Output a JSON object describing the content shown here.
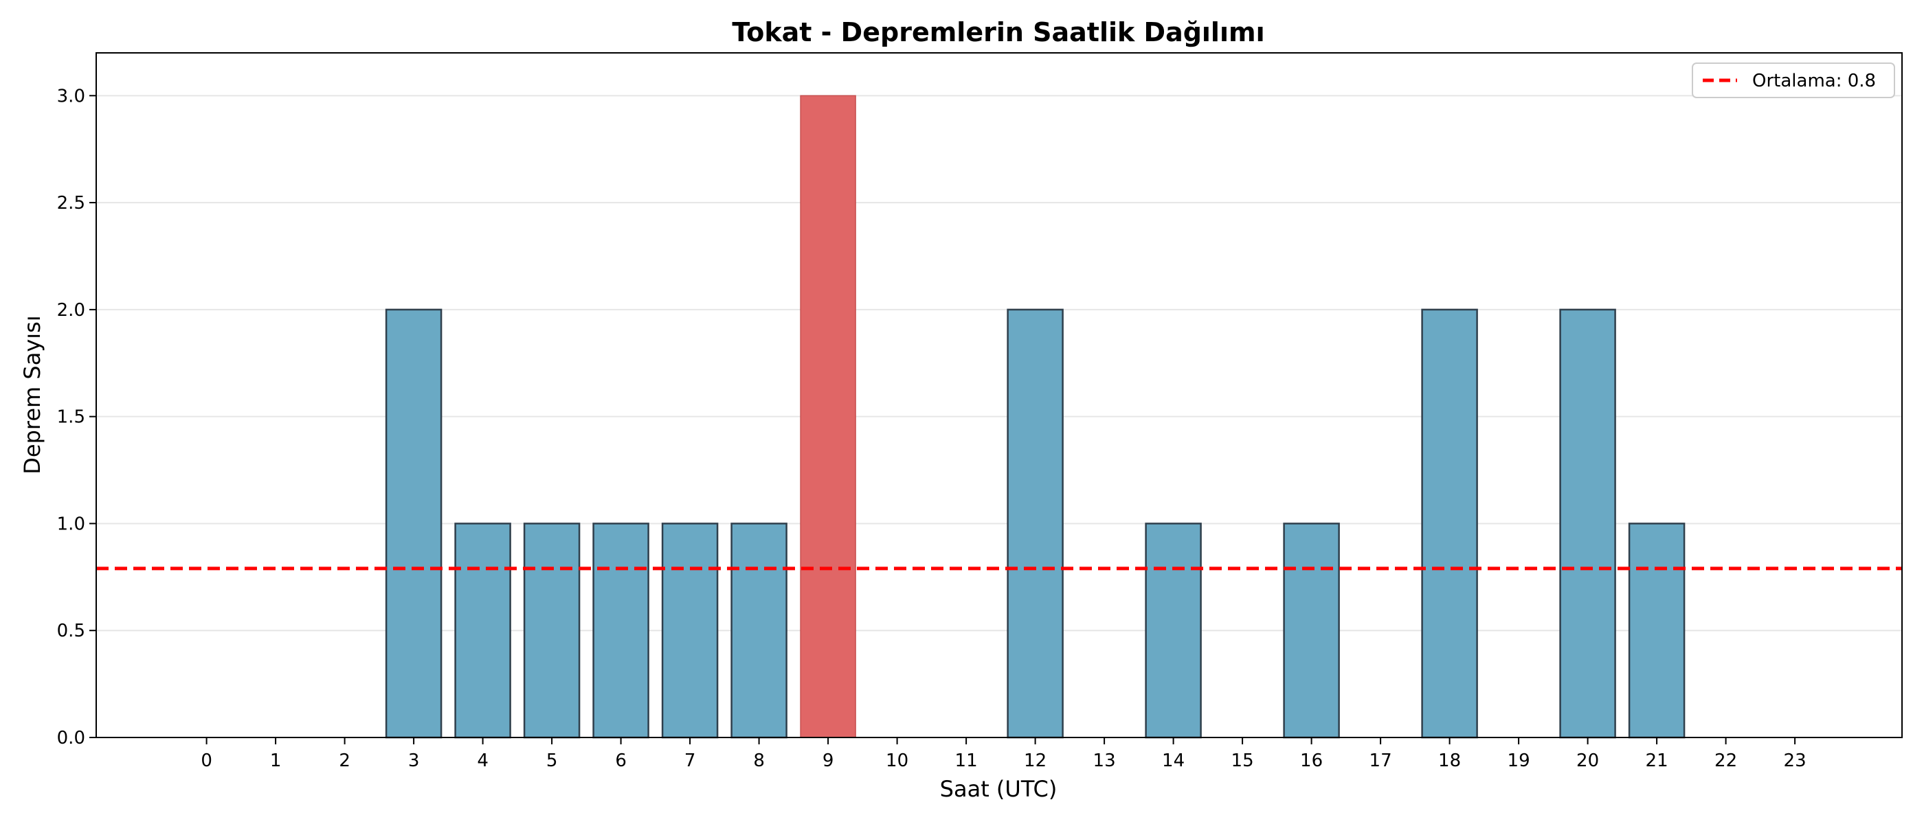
{
  "chart_data": {
    "type": "bar",
    "title": "Tokat - Depremlerin Saatlik Dağılımı",
    "xlabel": "Saat (UTC)",
    "ylabel": "Deprem Sayısı",
    "categories": [
      "0",
      "1",
      "2",
      "3",
      "4",
      "5",
      "6",
      "7",
      "8",
      "9",
      "10",
      "11",
      "12",
      "13",
      "14",
      "15",
      "16",
      "17",
      "18",
      "19",
      "20",
      "21",
      "22",
      "23"
    ],
    "values": [
      0,
      0,
      0,
      2,
      1,
      1,
      1,
      1,
      1,
      3,
      0,
      0,
      2,
      0,
      1,
      0,
      1,
      0,
      2,
      0,
      2,
      1,
      0,
      0
    ],
    "ylim": [
      0,
      3.2
    ],
    "yticks": [
      0.0,
      0.5,
      1.0,
      1.5,
      2.0,
      2.5,
      3.0
    ],
    "ytick_labels": [
      "0.0",
      "0.5",
      "1.0",
      "1.5",
      "2.0",
      "2.5",
      "3.0"
    ],
    "grid": "y",
    "mean_line": {
      "value": 0.79,
      "label": "Ortalama: 0.8",
      "color": "#ff0000",
      "style": "dashed"
    },
    "legend": {
      "position": "top-right",
      "entries": [
        "Ortalama: 0.8"
      ]
    },
    "colors": {
      "bar": "#6aa9c4",
      "highlight": "#e06666",
      "edge": "#2f3f4c"
    },
    "highlight_category": "9"
  }
}
